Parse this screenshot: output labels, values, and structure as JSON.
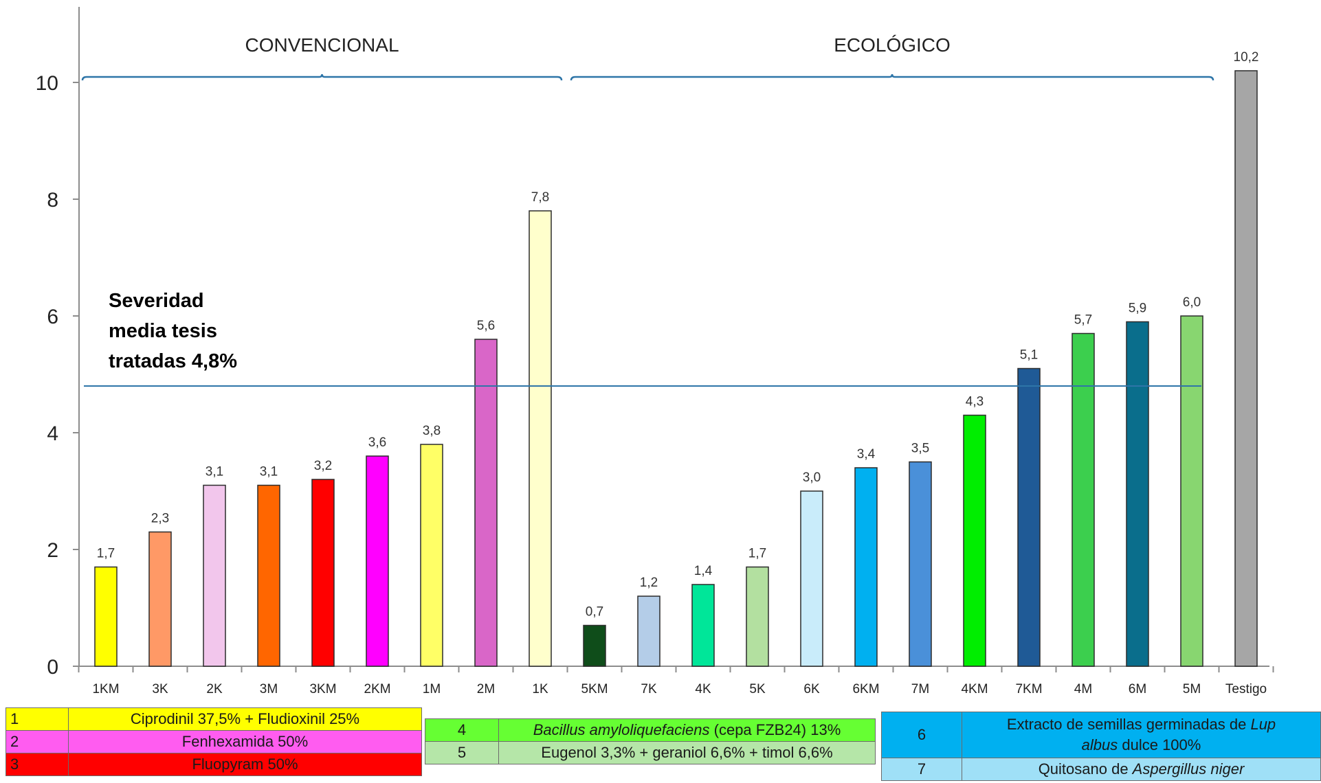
{
  "chart_data": {
    "type": "bar",
    "ylim": [
      0,
      11
    ],
    "yticks": [
      "0",
      "2",
      "4",
      "6",
      "8",
      "10"
    ],
    "categories": [
      "1KM",
      "3K",
      "2K",
      "3M",
      "3KM",
      "2KM",
      "1M",
      "2M",
      "1K",
      "5KM",
      "7K",
      "4K",
      "5K",
      "6K",
      "6KM",
      "7M",
      "4KM",
      "7KM",
      "4M",
      "6M",
      "5M",
      "Testigo"
    ],
    "values": [
      1.7,
      2.3,
      3.1,
      3.1,
      3.2,
      3.6,
      3.8,
      5.6,
      7.8,
      0.7,
      1.2,
      1.4,
      1.7,
      3.0,
      3.4,
      3.5,
      4.3,
      5.1,
      5.7,
      5.9,
      6.0,
      10.2
    ],
    "value_labels": [
      "1,7",
      "2,3",
      "3,1",
      "3,1",
      "3,2",
      "3,6",
      "3,8",
      "5,6",
      "7,8",
      "0,7",
      "1,2",
      "1,4",
      "1,7",
      "3,0",
      "3,4",
      "3,5",
      "4,3",
      "5,1",
      "5,7",
      "5,9",
      "6,0",
      "10,2"
    ],
    "colors": [
      "#ffff00",
      "#ff9966",
      "#f2c6ec",
      "#ff6600",
      "#ff0000",
      "#ff00ff",
      "#ffff66",
      "#d966c8",
      "#ffffcc",
      "#0f4d1a",
      "#b4cde8",
      "#00e699",
      "#b3e0a0",
      "#c9ecfa",
      "#00b0f0",
      "#4a90d9",
      "#00ee00",
      "#1f5a96",
      "#3ccf4e",
      "#0a6e8c",
      "#88d670",
      "#a6a6a6"
    ],
    "reference_line": {
      "value": 4.8,
      "label_lines": [
        "Severidad",
        "media tesis",
        "tratadas 4,8%"
      ]
    },
    "groups": [
      {
        "label": "CONVENCIONAL",
        "from": 0,
        "to": 8
      },
      {
        "label": "ECOLÓGICO",
        "from": 9,
        "to": 20
      }
    ],
    "grid": false
  },
  "legend": {
    "left": [
      {
        "num": "1",
        "text": "Ciprodinil 37,5% + Fludioxinil 25%"
      },
      {
        "num": "2",
        "text": "Fenhexamida 50%"
      },
      {
        "num": "3",
        "text": "Fluopyram 50%"
      }
    ],
    "middle": [
      {
        "num": "4",
        "text_italic": "Bacillus amyloliquefaciens",
        "text": " (cepa FZB24) 13%"
      },
      {
        "num": "5",
        "text": "Eugenol 3,3% + geraniol 6,6% + timol 6,6%"
      }
    ],
    "right": [
      {
        "num": "6",
        "line1": "Extracto de semillas germinadas de ",
        "line1_italic": "Lup",
        "line2_italic": "albus",
        "line2": " dulce 100%"
      },
      {
        "num": "7",
        "text": "Quitosano de ",
        "text_italic": "Aspergillus niger"
      }
    ],
    "colors": {
      "1": "#ffff00",
      "2": "#ff5cf0",
      "3": "#ff0000",
      "4": "#66ff33",
      "5": "#b5e6a8",
      "6": "#00b0f0",
      "7": "#9fe0f7"
    }
  }
}
